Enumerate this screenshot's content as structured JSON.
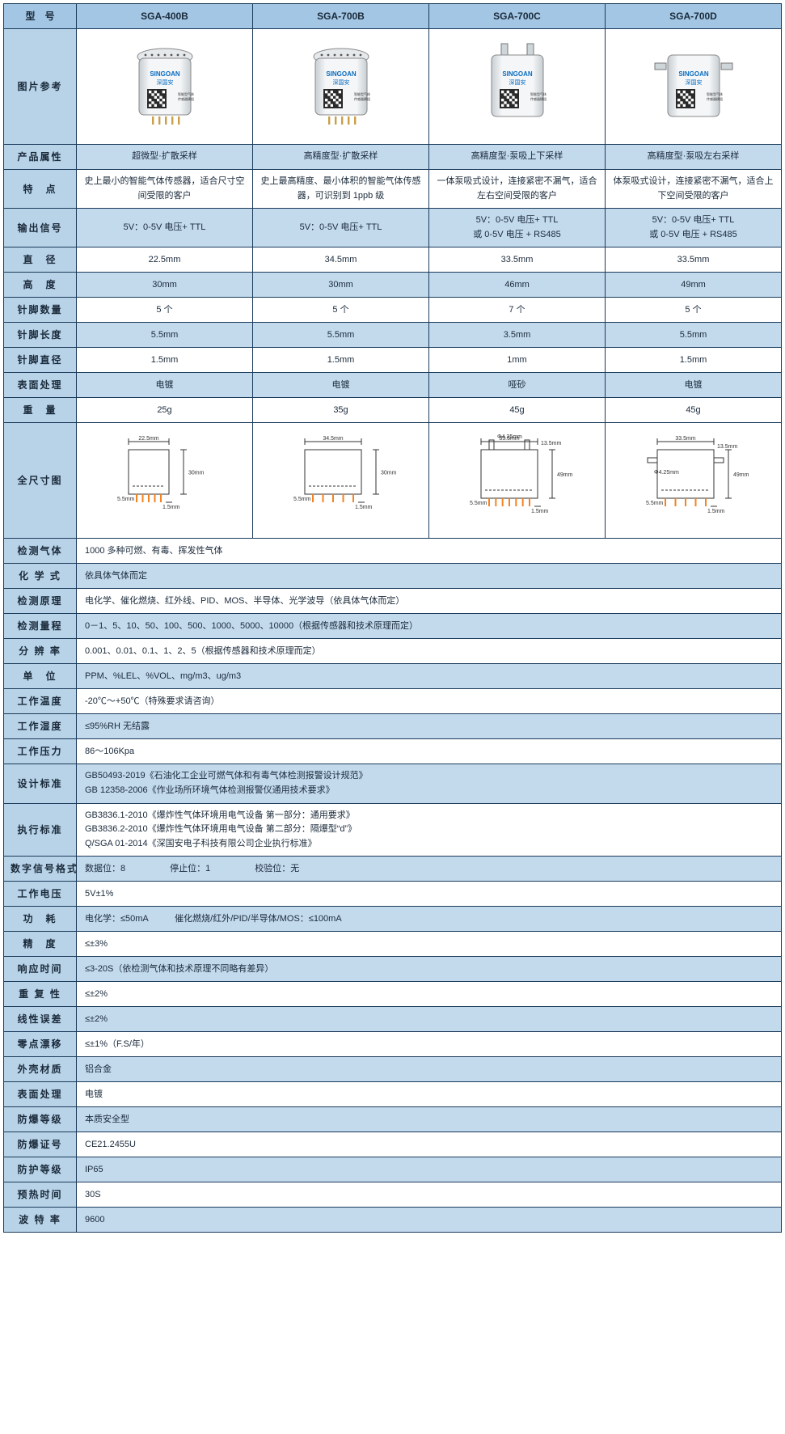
{
  "headers": {
    "model": "型　号",
    "models": [
      "SGA-400B",
      "SGA-700B",
      "SGA-700C",
      "SGA-700D"
    ]
  },
  "rows_top": [
    {
      "label": "图片参考",
      "type": "image"
    },
    {
      "label": "产品属性",
      "cells": [
        "超微型·扩散采样",
        "高精度型·扩散采样",
        "高精度型·泵吸上下采样",
        "高精度型·泵吸左右采样"
      ],
      "zebra": "blue"
    },
    {
      "label": "特　点",
      "cells": [
        "史上最小的智能气体传感器，适合尺寸空间受限的客户",
        "史上最高精度、最小体积的智能气体传感器，可识别到 1ppb 级",
        "一体泵吸式设计，连接紧密不漏气，适合左右空间受限的客户",
        "体泵吸式设计，连接紧密不漏气，适合上下空间受限的客户"
      ],
      "zebra": "white"
    },
    {
      "label": "输出信号",
      "cells": [
        "5V：0-5V 电压+ TTL",
        "5V：0-5V 电压+ TTL",
        "5V：0-5V 电压+ TTL\n或 0-5V 电压 + RS485",
        "5V：0-5V 电压+ TTL\n或 0-5V 电压 + RS485"
      ],
      "zebra": "blue"
    },
    {
      "label": "直　径",
      "cells": [
        "22.5mm",
        "34.5mm",
        "33.5mm",
        "33.5mm"
      ],
      "zebra": "white"
    },
    {
      "label": "高　度",
      "cells": [
        "30mm",
        "30mm",
        "46mm",
        "49mm"
      ],
      "zebra": "blue"
    },
    {
      "label": "针脚数量",
      "cells": [
        "5 个",
        "5 个",
        "7 个",
        "5 个"
      ],
      "zebra": "white"
    },
    {
      "label": "针脚长度",
      "cells": [
        "5.5mm",
        "5.5mm",
        "3.5mm",
        "5.5mm"
      ],
      "zebra": "blue"
    },
    {
      "label": "针脚直径",
      "cells": [
        "1.5mm",
        "1.5mm",
        "1mm",
        "1.5mm"
      ],
      "zebra": "white"
    },
    {
      "label": "表面处理",
      "cells": [
        "电镀",
        "电镀",
        "哑砂",
        "电镀"
      ],
      "zebra": "blue"
    },
    {
      "label": "重　量",
      "cells": [
        "25g",
        "35g",
        "45g",
        "45g"
      ],
      "zebra": "white"
    },
    {
      "label": "全尺寸图",
      "type": "dims"
    }
  ],
  "rows_full": [
    {
      "label": "检测气体",
      "value": "1000 多种可燃、有毒、挥发性气体",
      "zebra": "white"
    },
    {
      "label": "化 学 式",
      "value": "依具体气体而定",
      "zebra": "blue"
    },
    {
      "label": "检测原理",
      "value": "电化学、催化燃烧、红外线、PID、MOS、半导体、光学波导（依具体气体而定）",
      "zebra": "white"
    },
    {
      "label": "检测量程",
      "value": "0－1、5、10、50、100、500、1000、5000、10000（根据传感器和技术原理而定）",
      "zebra": "blue"
    },
    {
      "label": "分 辨 率",
      "value": "0.001、0.01、0.1、1、2、5（根据传感器和技术原理而定）",
      "zebra": "white"
    },
    {
      "label": "单　位",
      "value": "PPM、%LEL、%VOL、mg/m3、ug/m3",
      "zebra": "blue"
    },
    {
      "label": "工作温度",
      "value": "-20℃～+50℃（特殊要求请咨询）",
      "zebra": "white"
    },
    {
      "label": "工作湿度",
      "value": "≤95%RH 无结露",
      "zebra": "blue"
    },
    {
      "label": "工作压力",
      "value": "86～106Kpa",
      "zebra": "white"
    },
    {
      "label": "设计标准",
      "value": "GB50493-2019《石油化工企业可燃气体和有毒气体检测报警设计规范》\nGB 12358-2006《作业场所环境气体检测报警仪通用技术要求》",
      "zebra": "blue"
    },
    {
      "label": "执行标准",
      "value": "GB3836.1-2010《爆炸性气体环境用电气设备 第一部分：通用要求》\nGB3836.2-2010《爆炸性气体环境用电气设备 第二部分：隔爆型“d”》\nQ/SGA 01-2014《深国安电子科技有限公司企业执行标准》",
      "zebra": "white"
    },
    {
      "label": "数字信号格式",
      "value": "数据位：8　　　　　停止位：1　　　　　校验位：无",
      "zebra": "blue"
    },
    {
      "label": "工作电压",
      "value": "5V±1%",
      "zebra": "white"
    },
    {
      "label": "功　耗",
      "value": "电化学：≤50mA　　　催化燃烧/红外/PID/半导体/MOS：≤100mA",
      "zebra": "blue"
    },
    {
      "label": "精　度",
      "value": "≤±3%",
      "zebra": "white"
    },
    {
      "label": "响应时间",
      "value": "≤3-20S（依检测气体和技术原理不同略有差异）",
      "zebra": "blue"
    },
    {
      "label": "重 复 性",
      "value": "≤±2%",
      "zebra": "white"
    },
    {
      "label": "线性误差",
      "value": "≤±2%",
      "zebra": "blue"
    },
    {
      "label": "零点漂移",
      "value": "≤±1%（F.S/年）",
      "zebra": "white"
    },
    {
      "label": "外壳材质",
      "value": "铝合金",
      "zebra": "blue"
    },
    {
      "label": "表面处理",
      "value": "电镀",
      "zebra": "white"
    },
    {
      "label": "防爆等级",
      "value": "本质安全型",
      "zebra": "blue"
    },
    {
      "label": "防爆证号",
      "value": "CE21.2455U",
      "zebra": "white"
    },
    {
      "label": "防护等级",
      "value": "IP65",
      "zebra": "blue"
    },
    {
      "label": "预热时间",
      "value": "30S",
      "zebra": "white"
    },
    {
      "label": "波 特 率",
      "value": "9600",
      "zebra": "blue"
    }
  ],
  "style": {
    "header_bg": "#a3c6e4",
    "label_bg": "#b8d3e8",
    "cell_white": "#ffffff",
    "cell_blue": "#c3daed",
    "border": "#1a3a5a",
    "label_col_width": 90,
    "data_col_width": 218,
    "pin_color": "#f58220",
    "brand": "SINGOAN",
    "brand_cn": "深国安"
  },
  "images": {
    "labels": [
      "22.5mm",
      "34.5mm",
      "33.5mm",
      "33.5mm",
      "30mm",
      "46mm",
      "49mm",
      "5.5mm",
      "1.5mm",
      "Φ4.25mm",
      "13.5mm"
    ],
    "top_port": [
      "none",
      "none",
      "dual-top",
      "dual-side"
    ]
  }
}
